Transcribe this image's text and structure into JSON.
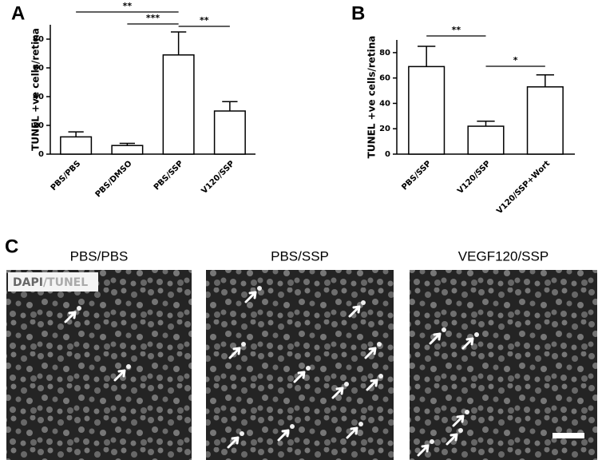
{
  "chart_data": [
    {
      "type": "bar",
      "panel": "A",
      "y_label": "TUNEL +ve cells/retina",
      "categories": [
        "PBS/PBS",
        "PBS/DMSO",
        "PBS/SSP",
        "V120/SSP"
      ],
      "values": [
        12,
        6,
        69,
        30
      ],
      "errors": [
        3.5,
        1.5,
        16,
        6.5
      ],
      "color": "#ffffff",
      "ylim": [
        0,
        90
      ],
      "yticks": [
        0,
        20,
        40,
        60,
        80
      ],
      "significance": [
        {
          "from": "PBS/PBS",
          "to": "PBS/SSP",
          "label": "**"
        },
        {
          "from": "PBS/DMSO",
          "to": "PBS/SSP",
          "label": "***"
        },
        {
          "from": "PBS/SSP",
          "to": "V120/SSP",
          "label": "**"
        }
      ]
    },
    {
      "type": "bar",
      "panel": "B",
      "y_label": "TUNEL +ve cells/retina",
      "categories": [
        "PBS/SSP",
        "V120/SSP",
        "V120/SSP+Wort"
      ],
      "values": [
        69,
        22,
        53
      ],
      "errors": [
        16,
        4,
        9.5
      ],
      "color": "#ffffff",
      "ylim": [
        0,
        90
      ],
      "yticks": [
        0,
        20,
        40,
        60,
        80
      ],
      "significance": [
        {
          "from": "PBS/SSP",
          "to": "V120/SSP",
          "label": "**"
        },
        {
          "from": "V120/SSP",
          "to": "V120/SSP+Wort",
          "label": "*"
        }
      ]
    }
  ],
  "panel_c": {
    "panel": "C",
    "image_titles": [
      "PBS/PBS",
      "PBS/SSP",
      "VEGF120/SSP"
    ],
    "stain_label": [
      "DAPI",
      "/TUNEL"
    ]
  }
}
